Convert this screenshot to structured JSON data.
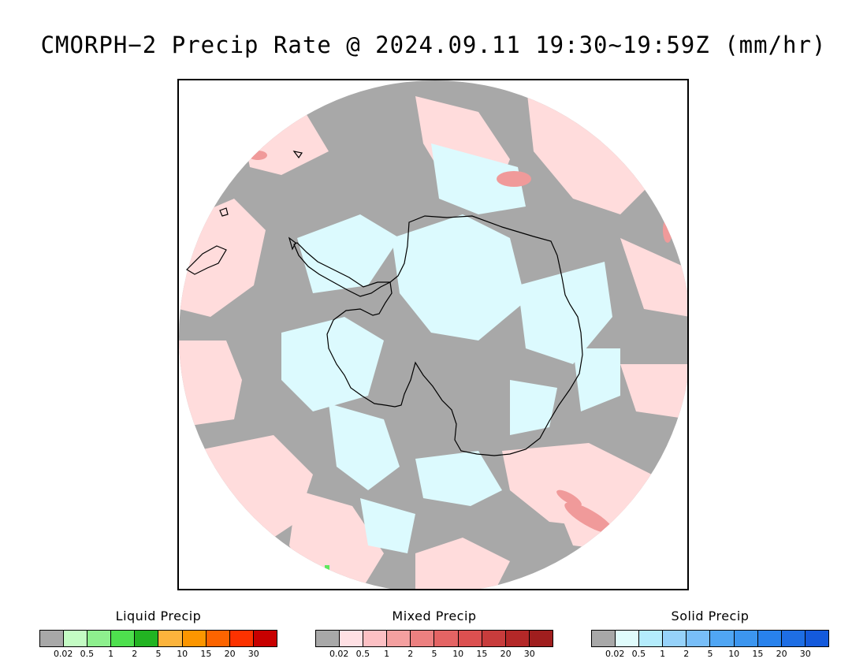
{
  "title": "CMORPH−2 Precip Rate @ 2024.09.11 19:30~19:59Z (mm/hr)",
  "map": {
    "projection": "south-polar-stereographic",
    "colors": {
      "no_precip": "#a8a8a8",
      "mixed_light": "#ffdcdc",
      "solid_light": "#dcfafe",
      "mixed_moderate": "#f09a9a",
      "liquid_light": "#5ee85e",
      "coastline": "#000000"
    }
  },
  "legends": [
    {
      "title": "Liquid Precip",
      "colors": [
        "#a8a8a8",
        "#c4fcc4",
        "#8ef08e",
        "#4ee04e",
        "#22b422",
        "#fcb43c",
        "#fc9600",
        "#fc6400",
        "#fc3200",
        "#c80000"
      ],
      "ticks": [
        "0.02",
        "0.5",
        "1",
        "2",
        "5",
        "10",
        "15",
        "20",
        "30"
      ]
    },
    {
      "title": "Mixed Precip",
      "colors": [
        "#a8a8a8",
        "#ffe0e4",
        "#fcc0c4",
        "#f4a0a0",
        "#ec8080",
        "#e46464",
        "#dc5050",
        "#c83c3c",
        "#b42828",
        "#a01e1e"
      ],
      "ticks": [
        "0.02",
        "0.5",
        "1",
        "2",
        "5",
        "10",
        "15",
        "20",
        "30"
      ]
    },
    {
      "title": "Solid Precip",
      "colors": [
        "#a8a8a8",
        "#e0fcfc",
        "#b4ecfc",
        "#96d2fa",
        "#78bef8",
        "#50a6f4",
        "#3c96f0",
        "#2882ec",
        "#1e6ee4",
        "#145adc"
      ],
      "ticks": [
        "0.02",
        "0.5",
        "1",
        "2",
        "5",
        "10",
        "15",
        "20",
        "30"
      ]
    }
  ]
}
